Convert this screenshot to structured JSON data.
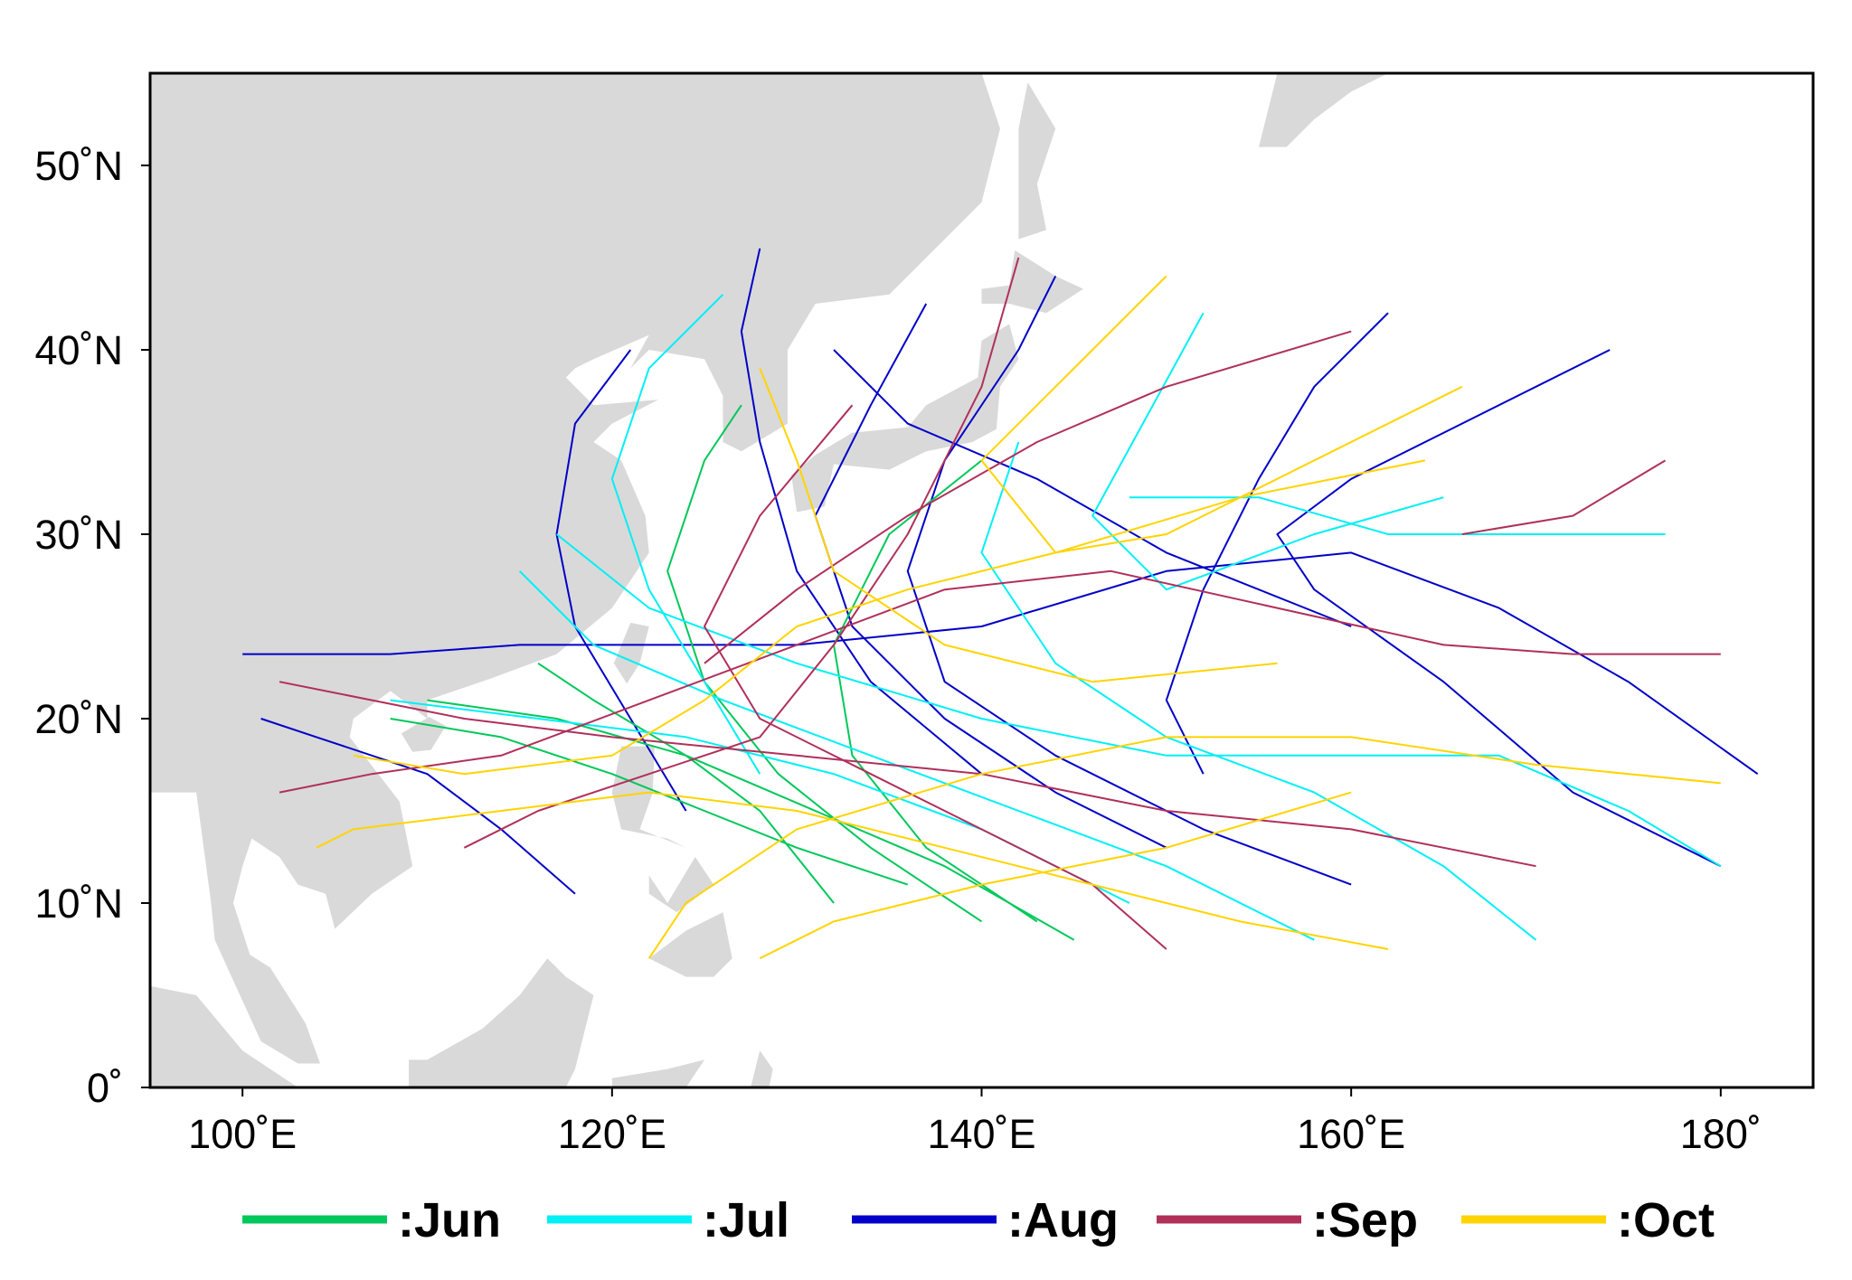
{
  "map": {
    "extent": {
      "lon": [
        95,
        185
      ],
      "lat": [
        0,
        55
      ]
    },
    "land_color": "#d9d9d9",
    "lat_ticks": [
      {
        "value": 0,
        "label": "0˚"
      },
      {
        "value": 10,
        "label": "10˚N"
      },
      {
        "value": 20,
        "label": "20˚N"
      },
      {
        "value": 30,
        "label": "30˚N"
      },
      {
        "value": 40,
        "label": "40˚N"
      },
      {
        "value": 50,
        "label": "50˚N"
      }
    ],
    "lon_ticks": [
      {
        "value": 100,
        "label": "100˚E"
      },
      {
        "value": 120,
        "label": "120˚E"
      },
      {
        "value": 140,
        "label": "140˚E"
      },
      {
        "value": 160,
        "label": "160˚E"
      },
      {
        "value": 180,
        "label": "180˚"
      }
    ]
  },
  "legend": [
    {
      "key": "jun",
      "label": ":Jun",
      "color": "#00c85a"
    },
    {
      "key": "jul",
      "label": ":Jul",
      "color": "#00f0f5"
    },
    {
      "key": "aug",
      "label": ":Aug",
      "color": "#0000c8"
    },
    {
      "key": "sep",
      "label": ":Sep",
      "color": "#b0305a"
    },
    {
      "key": "oct",
      "label": ":Oct",
      "color": "#ffd400"
    }
  ],
  "tracks": {
    "jun": [
      [
        [
          132,
          10
        ],
        [
          128,
          15
        ],
        [
          124,
          18
        ],
        [
          119,
          21
        ],
        [
          116,
          23
        ]
      ],
      [
        [
          140,
          9
        ],
        [
          134,
          13
        ],
        [
          129,
          17
        ],
        [
          125,
          22
        ],
        [
          123,
          28
        ],
        [
          125,
          34
        ],
        [
          127,
          37
        ]
      ],
      [
        [
          145,
          8
        ],
        [
          138,
          12
        ],
        [
          131,
          15
        ],
        [
          124,
          18
        ],
        [
          117,
          20
        ],
        [
          110,
          21
        ]
      ],
      [
        [
          136,
          11
        ],
        [
          130,
          13
        ],
        [
          125,
          15
        ],
        [
          120,
          17
        ],
        [
          114,
          19
        ],
        [
          108,
          20
        ]
      ],
      [
        [
          143,
          9
        ],
        [
          137,
          13
        ],
        [
          133,
          18
        ],
        [
          132,
          24
        ],
        [
          135,
          30
        ],
        [
          140,
          34
        ]
      ]
    ],
    "jul": [
      [
        [
          158,
          8
        ],
        [
          150,
          12
        ],
        [
          142,
          15
        ],
        [
          134,
          18
        ],
        [
          126,
          21
        ],
        [
          119,
          24
        ],
        [
          115,
          28
        ]
      ],
      [
        [
          170,
          8
        ],
        [
          165,
          12
        ],
        [
          158,
          16
        ],
        [
          150,
          19
        ],
        [
          144,
          23
        ],
        [
          140,
          29
        ],
        [
          142,
          35
        ]
      ],
      [
        [
          180,
          12
        ],
        [
          175,
          15
        ],
        [
          168,
          18
        ],
        [
          160,
          18
        ],
        [
          150,
          18
        ],
        [
          140,
          20
        ],
        [
          130,
          23
        ],
        [
          122,
          26
        ],
        [
          117,
          30
        ]
      ],
      [
        [
          148,
          10
        ],
        [
          140,
          14
        ],
        [
          132,
          17
        ],
        [
          124,
          19
        ],
        [
          116,
          20
        ],
        [
          108,
          21
        ]
      ],
      [
        [
          128,
          17
        ],
        [
          125,
          22
        ],
        [
          122,
          27
        ],
        [
          120,
          33
        ],
        [
          122,
          39
        ],
        [
          126,
          43
        ]
      ],
      [
        [
          165,
          32
        ],
        [
          158,
          30
        ],
        [
          150,
          27
        ],
        [
          146,
          31
        ],
        [
          152,
          42
        ]
      ],
      [
        [
          177,
          30
        ],
        [
          170,
          30
        ],
        [
          162,
          30
        ],
        [
          155,
          32
        ],
        [
          148,
          32
        ]
      ]
    ],
    "aug": [
      [
        [
          182,
          17
        ],
        [
          175,
          22
        ],
        [
          168,
          26
        ],
        [
          160,
          29
        ],
        [
          150,
          28
        ],
        [
          140,
          25
        ],
        [
          130,
          24
        ],
        [
          122,
          24
        ],
        [
          115,
          24
        ],
        [
          108,
          23.5
        ],
        [
          100,
          23.5
        ]
      ],
      [
        [
          174,
          40
        ],
        [
          166,
          36
        ],
        [
          160,
          33
        ],
        [
          156,
          30
        ],
        [
          158,
          27
        ],
        [
          165,
          22
        ],
        [
          172,
          16
        ],
        [
          180,
          12
        ]
      ],
      [
        [
          140,
          17
        ],
        [
          134,
          22
        ],
        [
          130,
          28
        ],
        [
          128,
          35
        ],
        [
          127,
          41
        ],
        [
          128,
          45.5
        ]
      ],
      [
        [
          150,
          13
        ],
        [
          144,
          16
        ],
        [
          138,
          20
        ],
        [
          133,
          25
        ],
        [
          131,
          31
        ],
        [
          134,
          37
        ],
        [
          137,
          42.5
        ]
      ],
      [
        [
          124,
          15
        ],
        [
          121,
          20
        ],
        [
          118,
          25
        ],
        [
          117,
          30
        ],
        [
          118,
          36
        ],
        [
          121,
          40
        ]
      ],
      [
        [
          160,
          11
        ],
        [
          152,
          14
        ],
        [
          144,
          18
        ],
        [
          138,
          22
        ],
        [
          136,
          28
        ],
        [
          138,
          34
        ],
        [
          142,
          40
        ],
        [
          144,
          44
        ]
      ],
      [
        [
          118,
          10.5
        ],
        [
          114,
          14
        ],
        [
          110,
          17
        ],
        [
          104,
          19
        ],
        [
          101,
          20
        ]
      ],
      [
        [
          160,
          25
        ],
        [
          150,
          29
        ],
        [
          143,
          33
        ],
        [
          136,
          36
        ],
        [
          132,
          40
        ]
      ],
      [
        [
          162,
          42
        ],
        [
          158,
          38
        ],
        [
          155,
          33
        ],
        [
          152,
          27
        ],
        [
          150,
          21
        ],
        [
          152,
          17
        ]
      ]
    ],
    "sep": [
      [
        [
          180,
          23.5
        ],
        [
          172,
          23.5
        ],
        [
          165,
          24
        ],
        [
          156,
          26
        ],
        [
          147,
          28
        ],
        [
          138,
          27
        ],
        [
          130,
          24
        ],
        [
          122,
          21
        ],
        [
          114,
          18
        ],
        [
          107,
          17
        ],
        [
          102,
          16
        ]
      ],
      [
        [
          177,
          34
        ],
        [
          172,
          31
        ],
        [
          166,
          30
        ]
      ],
      [
        [
          160,
          41
        ],
        [
          150,
          38
        ],
        [
          143,
          35
        ],
        [
          136,
          31
        ],
        [
          130,
          27
        ],
        [
          125,
          23
        ]
      ],
      [
        [
          142,
          45
        ],
        [
          140,
          38
        ],
        [
          136,
          30
        ],
        [
          132,
          24
        ],
        [
          128,
          19
        ],
        [
          122,
          17
        ],
        [
          116,
          15
        ],
        [
          112,
          13
        ]
      ],
      [
        [
          170,
          12
        ],
        [
          160,
          14
        ],
        [
          150,
          15
        ],
        [
          140,
          17
        ],
        [
          130,
          18
        ],
        [
          120,
          19
        ],
        [
          112,
          20
        ],
        [
          102,
          22
        ]
      ],
      [
        [
          150,
          7.5
        ],
        [
          146,
          11
        ],
        [
          140,
          14
        ],
        [
          134,
          17
        ],
        [
          128,
          20
        ],
        [
          125,
          25
        ],
        [
          128,
          31
        ],
        [
          133,
          37
        ]
      ]
    ],
    "oct": [
      [
        [
          162,
          7.5
        ],
        [
          154,
          9
        ],
        [
          146,
          11
        ],
        [
          138,
          13
        ],
        [
          130,
          15
        ],
        [
          122,
          16
        ],
        [
          114,
          15
        ],
        [
          106,
          14
        ],
        [
          104,
          13
        ]
      ],
      [
        [
          166,
          38
        ],
        [
          158,
          34
        ],
        [
          150,
          30
        ],
        [
          144,
          29
        ],
        [
          140,
          34
        ],
        [
          146,
          40
        ],
        [
          150,
          44
        ]
      ],
      [
        [
          180,
          16.5
        ],
        [
          170,
          17.5
        ],
        [
          160,
          19
        ],
        [
          150,
          19
        ],
        [
          140,
          17
        ],
        [
          130,
          14
        ],
        [
          124,
          10
        ],
        [
          122,
          7
        ]
      ],
      [
        [
          160,
          16
        ],
        [
          150,
          13
        ],
        [
          140,
          11
        ],
        [
          132,
          9
        ],
        [
          128,
          7
        ]
      ],
      [
        [
          156,
          23
        ],
        [
          146,
          22
        ],
        [
          138,
          24
        ],
        [
          132,
          28
        ],
        [
          130,
          34
        ],
        [
          128,
          39
        ]
      ],
      [
        [
          164,
          34
        ],
        [
          154,
          32
        ],
        [
          144,
          29
        ],
        [
          136,
          27
        ],
        [
          130,
          25
        ],
        [
          125,
          21
        ],
        [
          120,
          18
        ],
        [
          112,
          17
        ],
        [
          106,
          18
        ]
      ]
    ]
  }
}
